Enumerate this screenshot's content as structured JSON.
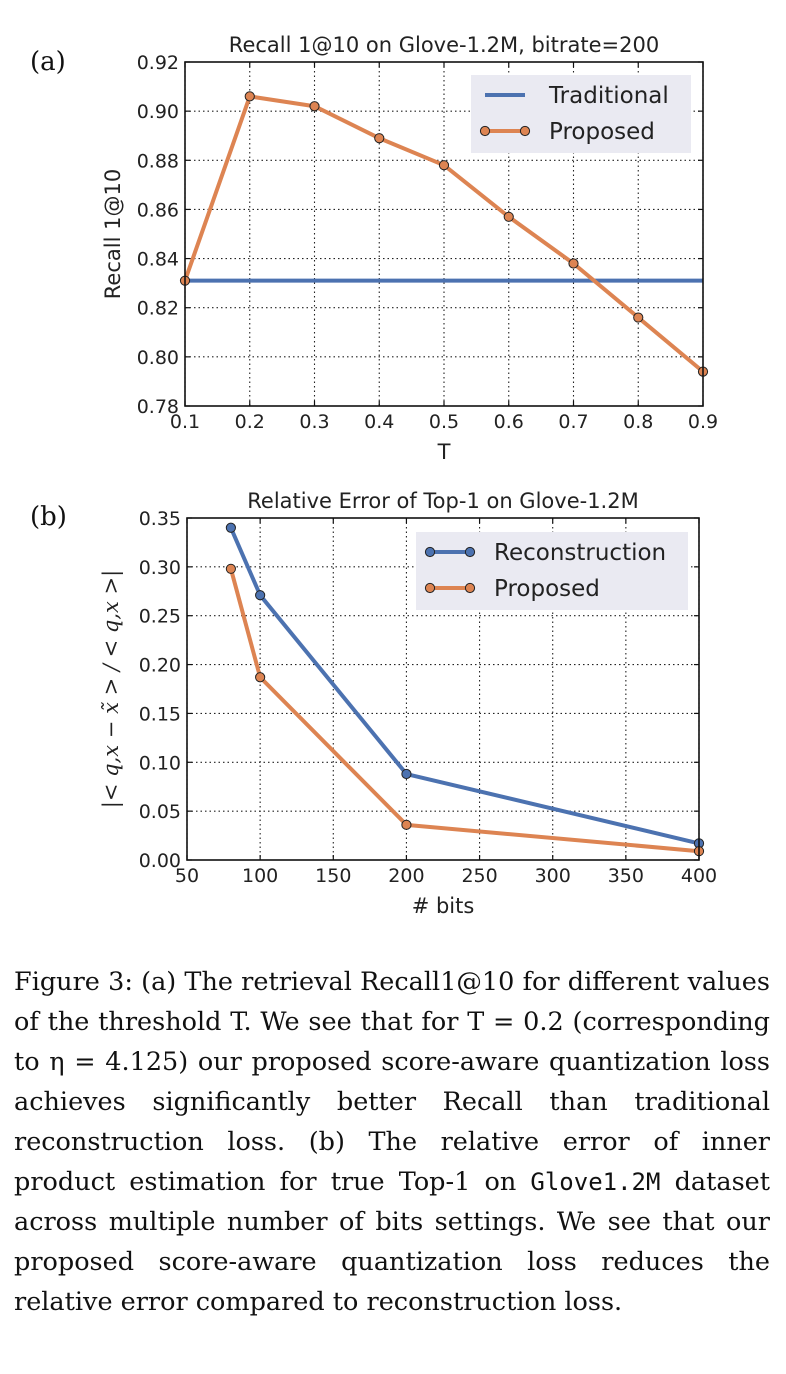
{
  "chart_data": [
    {
      "type": "line",
      "panel_label": "(a)",
      "title": "Recall 1@10 on Glove-1.2M, bitrate=200",
      "xlabel": "T",
      "ylabel": "Recall 1@10",
      "xlim": [
        0.1,
        0.9
      ],
      "ylim": [
        0.78,
        0.92
      ],
      "xticks": [
        0.1,
        0.2,
        0.3,
        0.4,
        0.5,
        0.6,
        0.7,
        0.8,
        0.9
      ],
      "xtick_labels": [
        "0.1",
        "0.2",
        "0.3",
        "0.4",
        "0.5",
        "0.6",
        "0.7",
        "0.8",
        "0.9"
      ],
      "yticks": [
        0.78,
        0.8,
        0.82,
        0.84,
        0.86,
        0.88,
        0.9,
        0.92
      ],
      "ytick_labels": [
        "0.78",
        "0.80",
        "0.82",
        "0.84",
        "0.86",
        "0.88",
        "0.90",
        "0.92"
      ],
      "grid": true,
      "legend_position": "top-right",
      "series": [
        {
          "name": "Traditional",
          "color": "#4c72b0",
          "markers": false,
          "x": [
            0.1,
            0.9
          ],
          "y": [
            0.831,
            0.831
          ]
        },
        {
          "name": "Proposed",
          "color": "#dd8452",
          "markers": true,
          "x": [
            0.1,
            0.2,
            0.3,
            0.4,
            0.5,
            0.6,
            0.7,
            0.8,
            0.9
          ],
          "y": [
            0.831,
            0.906,
            0.902,
            0.889,
            0.878,
            0.857,
            0.838,
            0.816,
            0.794
          ]
        }
      ]
    },
    {
      "type": "line",
      "panel_label": "(b)",
      "title": "Relative Error of Top-1 on Glove-1.2M",
      "xlabel": "# bits",
      "ylabel": "|< q,x − x̃ > / < q,x >|",
      "xlim": [
        50,
        400
      ],
      "ylim": [
        0.0,
        0.35
      ],
      "xticks": [
        50,
        100,
        150,
        200,
        250,
        300,
        350,
        400
      ],
      "xtick_labels": [
        "50",
        "100",
        "150",
        "200",
        "250",
        "300",
        "350",
        "400"
      ],
      "yticks": [
        0.0,
        0.05,
        0.1,
        0.15,
        0.2,
        0.25,
        0.3,
        0.35
      ],
      "ytick_labels": [
        "0.00",
        "0.05",
        "0.10",
        "0.15",
        "0.20",
        "0.25",
        "0.30",
        "0.35"
      ],
      "grid": true,
      "legend_position": "top-right",
      "series": [
        {
          "name": "Reconstruction",
          "color": "#4c72b0",
          "markers": true,
          "x": [
            80,
            100,
            200,
            400
          ],
          "y": [
            0.34,
            0.271,
            0.088,
            0.017
          ]
        },
        {
          "name": "Proposed",
          "color": "#dd8452",
          "markers": true,
          "x": [
            80,
            100,
            200,
            400
          ],
          "y": [
            0.298,
            0.187,
            0.036,
            0.009
          ]
        }
      ]
    }
  ],
  "caption": {
    "part1": "Figure 3: (a) The retrieval Recall1@10 for different values of the threshold T. We see that for T = 0.2 (corresponding to η = 4.125) our proposed score-aware quantization loss achieves significantly better Recall than traditional reconstruction loss. (b) The relative error of inner product estimation for true Top-1 on ",
    "dataset": "Glove1.2M",
    "part2": " dataset across multiple number of bits settings. We see that our proposed score-aware quantization loss reduces the relative error compared to reconstruction loss."
  }
}
